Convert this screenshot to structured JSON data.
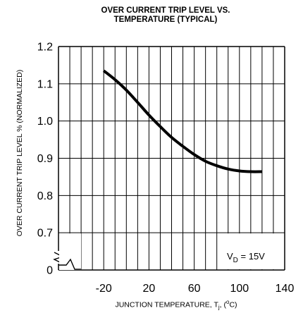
{
  "chart_data": {
    "type": "line",
    "title_line1": "OVER CURRENT TRIP LEVEL VS.",
    "title_line2": "TEMPERATURE (TYPICAL)",
    "ylabel": "OVER CURRENT TRIP LEVEL % (NORMALIZED)",
    "xlabel": "JUNCTION TEMPERATURE, Tj, (°C)",
    "xlabel_parts": {
      "pre": "JUNCTION TEMPERATURE, T",
      "sub": "j",
      "mid": ", (",
      "sup": "o",
      "post": "C)"
    },
    "x_ticks": [
      "-20",
      "20",
      "60",
      "100",
      "140"
    ],
    "y_ticks": [
      "0",
      "0.7",
      "0.8",
      "0.9",
      "1.0",
      "1.1",
      "1.2"
    ],
    "xlim": [
      -60,
      140
    ],
    "ylim": [
      0.6,
      1.2
    ],
    "grid": true,
    "axis_break": true,
    "annotation": {
      "pre": "V",
      "sub": "D",
      "post": " = 15V"
    },
    "series": [
      {
        "x": [
          -20,
          -10,
          0,
          10,
          20,
          30,
          40,
          50,
          60,
          70,
          80,
          90,
          100,
          110,
          120
        ],
        "y": [
          1.135,
          1.111,
          1.083,
          1.05,
          1.016,
          0.985,
          0.956,
          0.932,
          0.91,
          0.892,
          0.88,
          0.871,
          0.866,
          0.864,
          0.864
        ]
      }
    ]
  }
}
